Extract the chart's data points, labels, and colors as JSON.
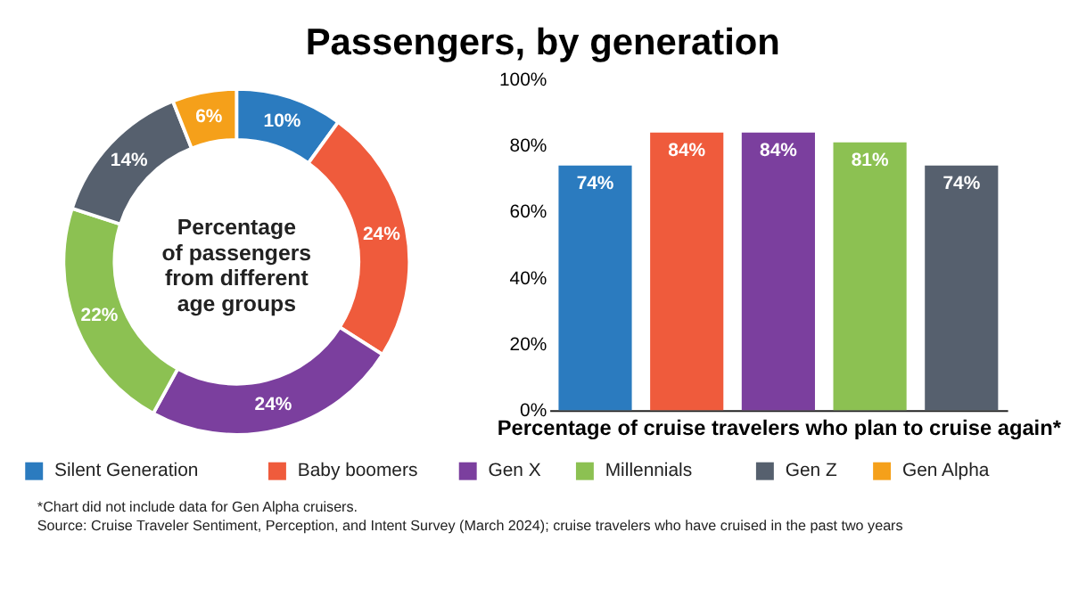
{
  "chart_data": [
    {
      "type": "donut",
      "title": "Passengers, by generation",
      "categories": [
        "Silent Generation",
        "Baby boomers",
        "Gen X",
        "Millennials",
        "Gen Z",
        "Gen Alpha"
      ],
      "values": [
        10,
        24,
        24,
        22,
        14,
        6
      ],
      "colors": [
        "#2b7bbf",
        "#ef5b3c",
        "#7b3f9e",
        "#8cc152",
        "#56606e",
        "#f5a01a"
      ],
      "value_labels": [
        "10%",
        "24%",
        "24%",
        "22%",
        "14%",
        "6%"
      ],
      "annotations": [
        "Percentage\nof passengers\nfrom different\nage groups"
      ],
      "legend": "bottom"
    },
    {
      "type": "bar",
      "categories": [
        null,
        null,
        null,
        null,
        null
      ],
      "values": [
        74,
        84,
        84,
        81,
        74
      ],
      "colors": [
        "#2b7bbf",
        "#ef5b3c",
        "#7b3f9e",
        "#8cc152",
        "#56606e"
      ],
      "value_labels": [
        "74%",
        "84%",
        "84%",
        "81%",
        "74%"
      ],
      "xlabel": "Percentage of cruise travelers who plan to cruise again*",
      "ylim": [
        0,
        100
      ],
      "yticks": [
        {
          "value": 0,
          "label": "0%"
        },
        {
          "value": 20,
          "label": "20%"
        },
        {
          "value": 40,
          "label": "40%"
        },
        {
          "value": 60,
          "label": "60%"
        },
        {
          "value": 80,
          "label": "80%"
        },
        {
          "value": 100,
          "label": "100%"
        }
      ],
      "tick_labels": "y",
      "grid": false,
      "annotations": [
        "*Chart did not include data for Gen Alpha cruisers.",
        "Source: Cruise Traveler Sentiment, Perception, and Intent Survey (March 2024); cruise travelers who have cruised in the past two years"
      ]
    }
  ]
}
